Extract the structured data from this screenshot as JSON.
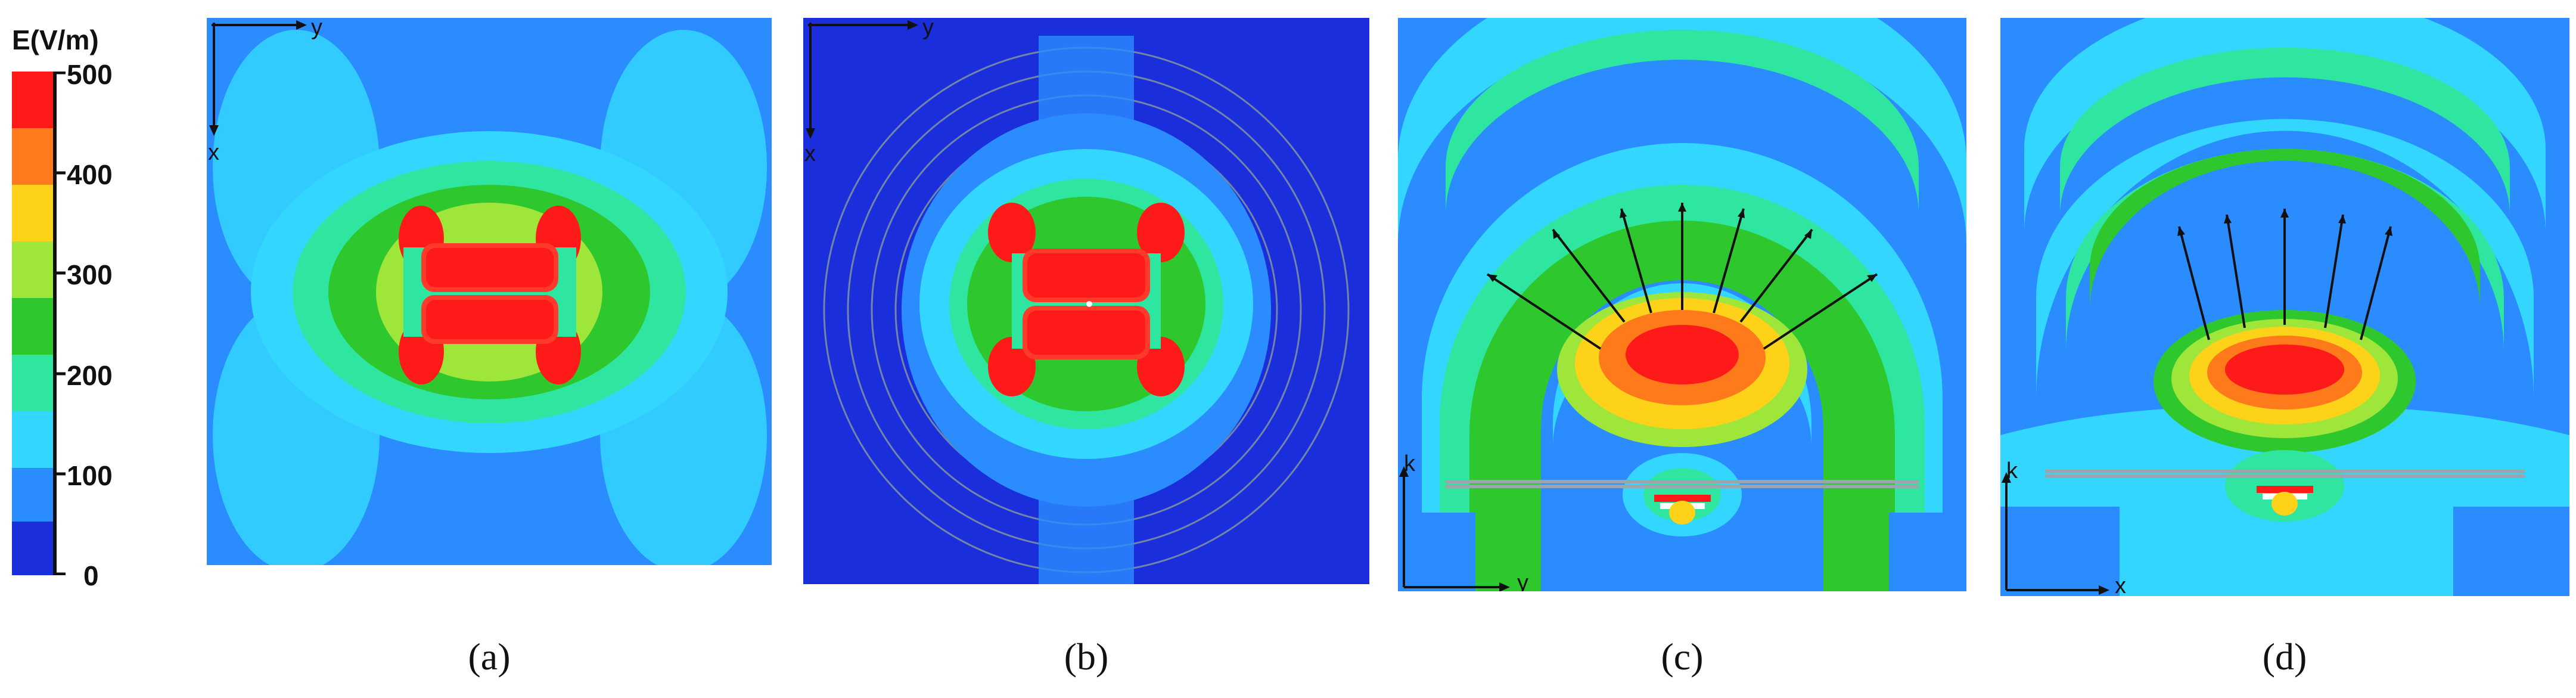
{
  "colorbar": {
    "title": "E(V/m)",
    "ticks": [
      "500",
      "400",
      "300",
      "200",
      "100",
      "0"
    ],
    "colors": [
      "#ff1a1a",
      "#ff7a1a",
      "#ffd21a",
      "#9ee63a",
      "#2ec82e",
      "#2ee6a0",
      "#33d6ff",
      "#2a8cff",
      "#1a2edc"
    ]
  },
  "panels": [
    {
      "caption": "(a)",
      "axis_x": "x",
      "axis_y": "y"
    },
    {
      "caption": "(b)",
      "axis_x": "x",
      "axis_y": "y"
    },
    {
      "caption": "(c)",
      "axis_k": "k",
      "axis_y": "y"
    },
    {
      "caption": "(d)",
      "axis_k": "k",
      "axis_x": "x"
    }
  ]
}
